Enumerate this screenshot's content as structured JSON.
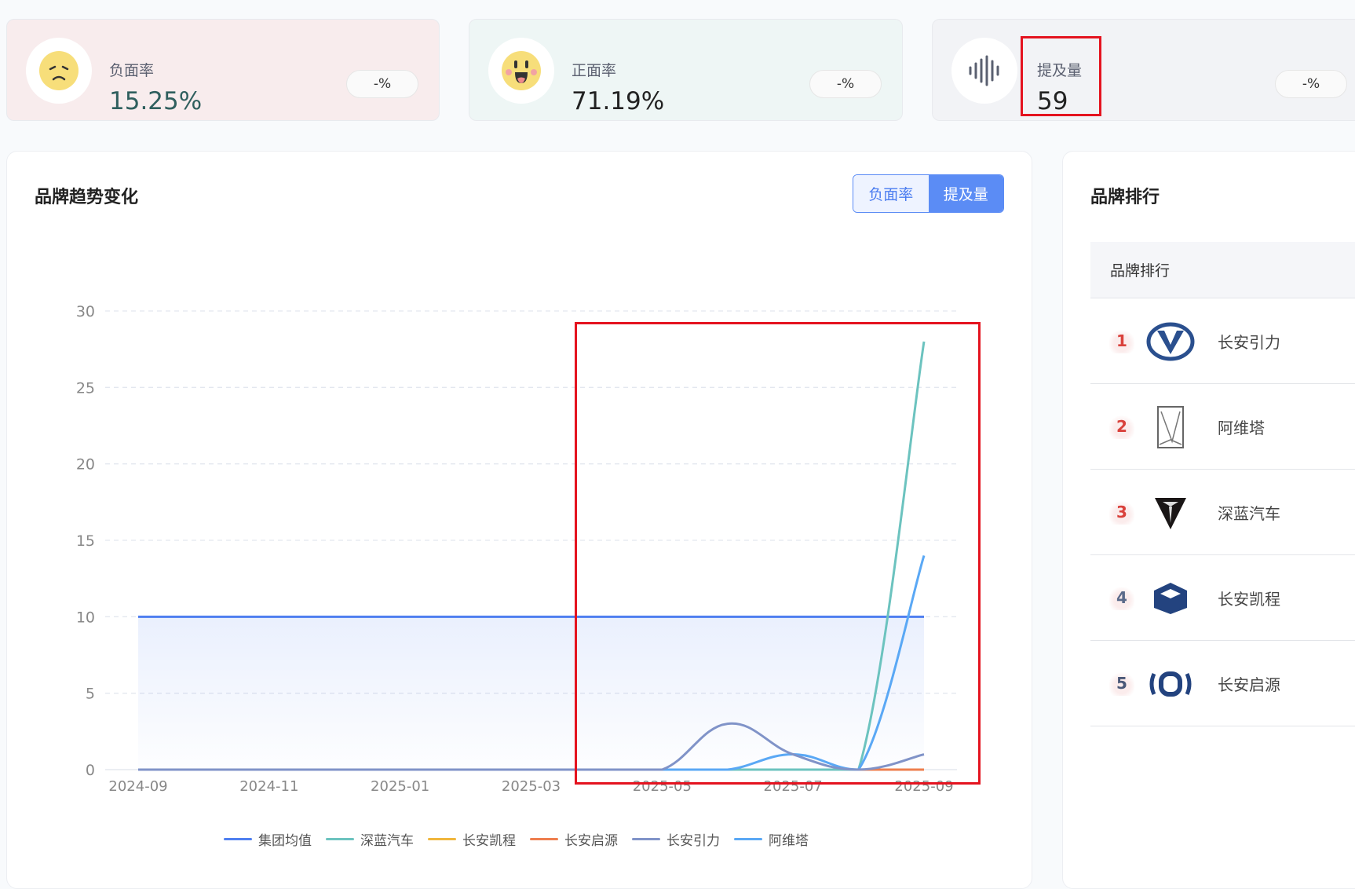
{
  "cards": [
    {
      "label": "负面率",
      "value": "15.25%",
      "change": "-%",
      "icon": "sad-face-icon",
      "bg": "#f8eced",
      "value_color": "#2f5f5e"
    },
    {
      "label": "正面率",
      "value": "71.19%",
      "change": "-%",
      "icon": "happy-face-icon",
      "bg": "#eef6f5",
      "value_color": "#222222"
    },
    {
      "label": "提及量",
      "value": "59",
      "change": "-%",
      "icon": "sound-wave-icon",
      "bg": "#f2f3f6",
      "value_color": "#222222"
    }
  ],
  "trend": {
    "title": "品牌趋势变化",
    "toggle": {
      "options": [
        "负面率",
        "提及量"
      ],
      "selected": "提及量"
    }
  },
  "ranking": {
    "title": "品牌排行",
    "column": "品牌排行",
    "items": [
      {
        "rank": "1",
        "name": "长安引力",
        "logo": "changan-yinli-logo",
        "rank_color": "#d9413b"
      },
      {
        "rank": "2",
        "name": "阿维塔",
        "logo": "avatr-logo",
        "rank_color": "#d9413b"
      },
      {
        "rank": "3",
        "name": "深蓝汽车",
        "logo": "deepal-logo",
        "rank_color": "#d9413b"
      },
      {
        "rank": "4",
        "name": "长安凯程",
        "logo": "changan-kaicheng-logo",
        "rank_color": "#5a6a8a"
      },
      {
        "rank": "5",
        "name": "长安启源",
        "logo": "changan-qiyuan-logo",
        "rank_color": "#4a5878"
      }
    ]
  },
  "chart_data": {
    "type": "line",
    "x": [
      "2024-09",
      "2024-10",
      "2024-11",
      "2024-12",
      "2025-01",
      "2025-02",
      "2025-03",
      "2025-04",
      "2025-05",
      "2025-06",
      "2025-07",
      "2025-08",
      "2025-09"
    ],
    "xticks": [
      "2024-09",
      "2024-11",
      "2025-01",
      "2025-03",
      "2025-05",
      "2025-07",
      "2025-09"
    ],
    "yticks": [
      "0",
      "5",
      "10",
      "15",
      "20",
      "25",
      "30"
    ],
    "ylim": [
      0,
      30
    ],
    "grid": true,
    "legend_position": "bottom",
    "series": [
      {
        "name": "集团均值",
        "color": "#4f7ff0",
        "values": [
          10,
          10,
          10,
          10,
          10,
          10,
          10,
          10,
          10,
          10,
          10,
          10,
          10
        ],
        "area": true
      },
      {
        "name": "深蓝汽车",
        "color": "#6cc3bf",
        "values": [
          0,
          0,
          0,
          0,
          0,
          0,
          0,
          0,
          0,
          0,
          0,
          0,
          28
        ]
      },
      {
        "name": "长安凯程",
        "color": "#f0b63c",
        "values": [
          0,
          0,
          0,
          0,
          0,
          0,
          0,
          0,
          0,
          0,
          0,
          0,
          0
        ]
      },
      {
        "name": "长安启源",
        "color": "#ee7e4e",
        "values": [
          0,
          0,
          0,
          0,
          0,
          0,
          0,
          0,
          0,
          0,
          0,
          0,
          0
        ]
      },
      {
        "name": "长安引力",
        "color": "#8093c8",
        "values": [
          0,
          0,
          0,
          0,
          0,
          0,
          0,
          0,
          0,
          3,
          1,
          0,
          1
        ]
      },
      {
        "name": "阿维塔",
        "color": "#5aa8f5",
        "values": [
          0,
          0,
          0,
          0,
          0,
          0,
          0,
          0,
          0,
          0,
          1,
          0,
          14
        ]
      }
    ]
  }
}
